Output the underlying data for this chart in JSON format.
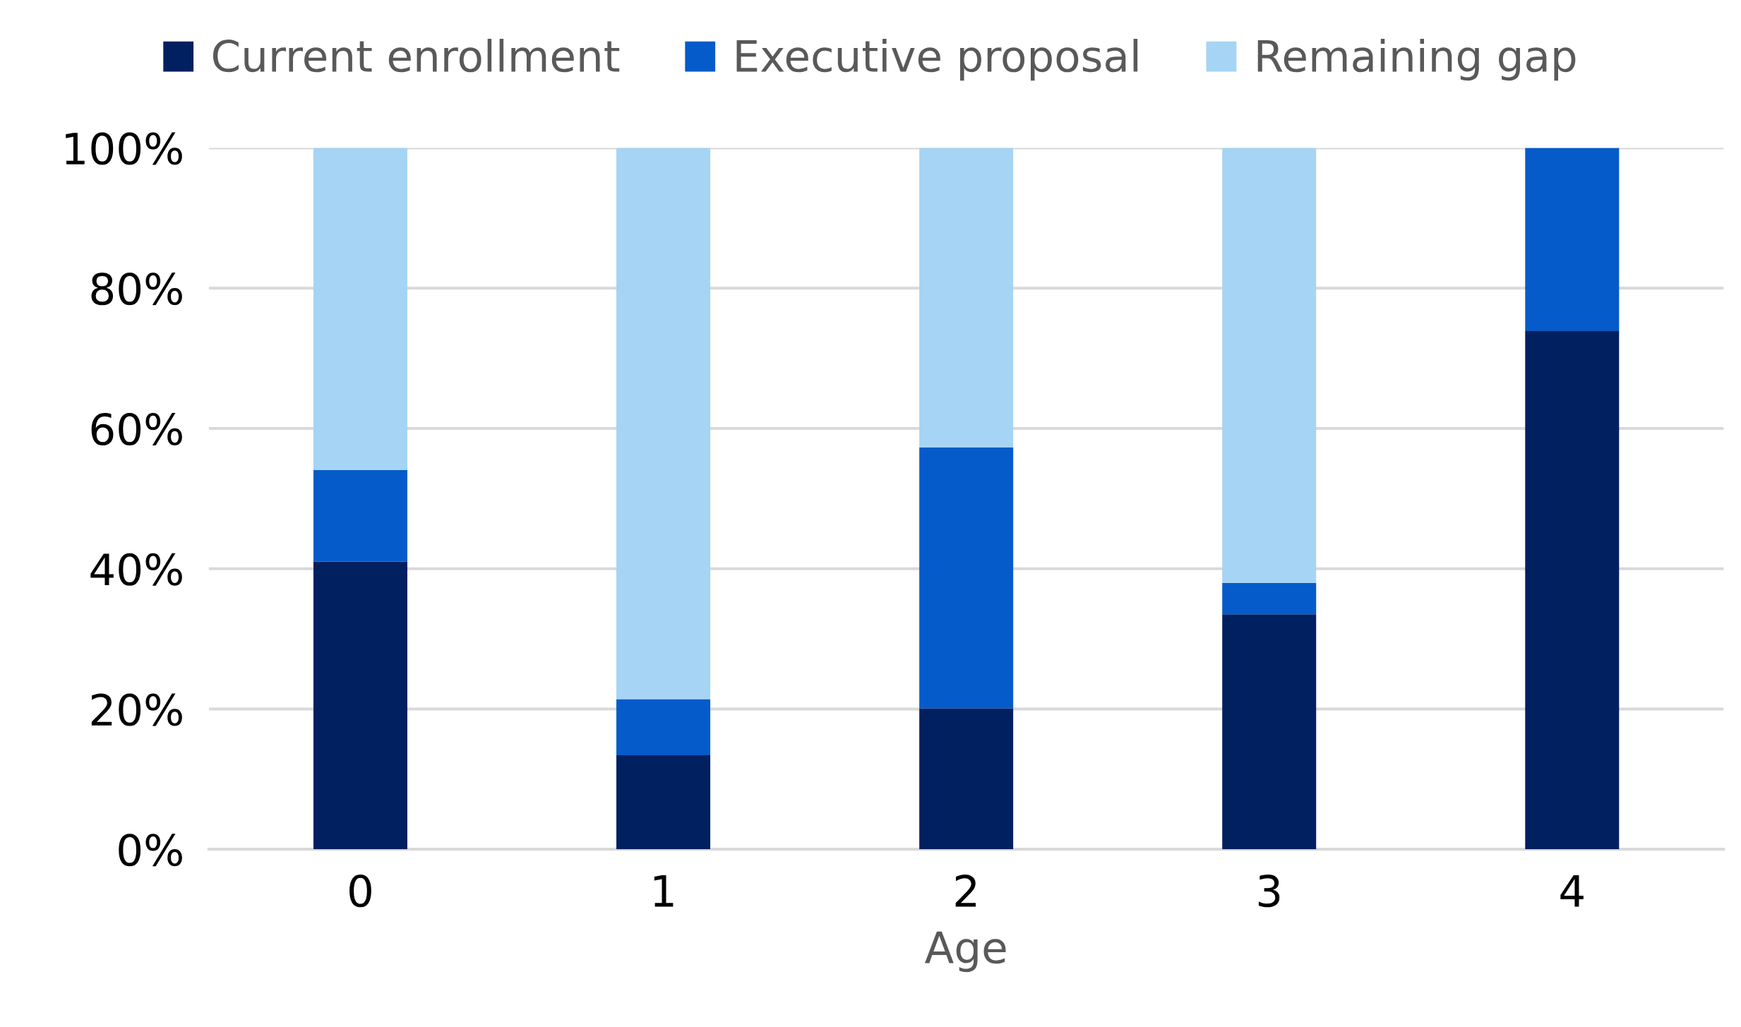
{
  "chart_data": {
    "type": "bar",
    "stacked": true,
    "xlabel": "Age",
    "categories": [
      "0",
      "1",
      "2",
      "3",
      "4"
    ],
    "series": [
      {
        "name": "Current enrollment",
        "color": "#002060",
        "values": [
          41.0,
          13.4,
          20.1,
          33.5,
          73.9
        ]
      },
      {
        "name": "Executive proposal",
        "color": "#055bc9",
        "values": [
          13.1,
          8.0,
          37.2,
          4.5,
          26.1
        ]
      },
      {
        "name": "Remaining gap",
        "color": "#a6d4f4",
        "values": [
          45.9,
          78.6,
          42.7,
          62.0,
          0
        ]
      }
    ],
    "ylim": [
      0,
      100
    ],
    "yticks": [
      {
        "value": 0,
        "label": "0%"
      },
      {
        "value": 20,
        "label": "20%"
      },
      {
        "value": 40,
        "label": "40%"
      },
      {
        "value": 60,
        "label": "60%"
      },
      {
        "value": 80,
        "label": "80%"
      },
      {
        "value": 100,
        "label": "100%"
      }
    ],
    "grid": "y",
    "legend": "top"
  }
}
